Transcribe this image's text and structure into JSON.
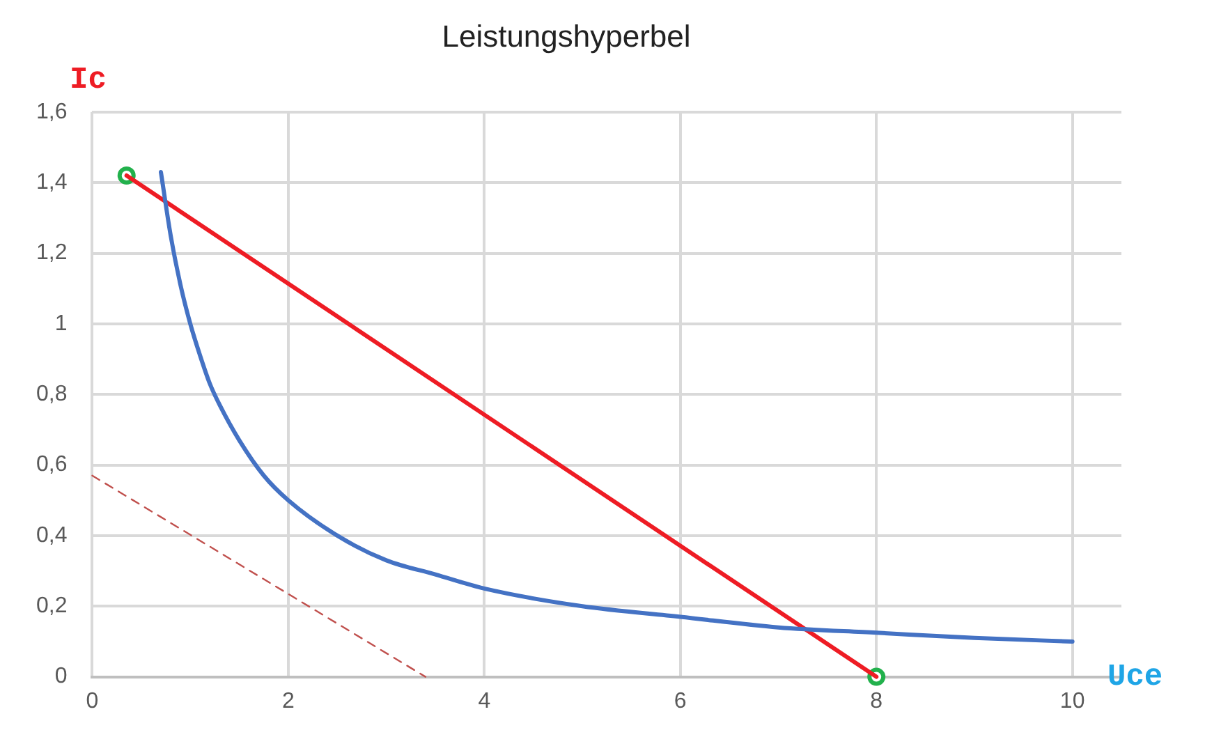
{
  "chart_data": {
    "type": "line",
    "title": "Leistungshyperbel",
    "xlabel": "Uce",
    "ylabel": "Ic",
    "xlim": [
      0,
      10.5
    ],
    "ylim": [
      0,
      1.6
    ],
    "xticks": [
      0,
      2,
      4,
      6,
      8,
      10
    ],
    "yticks": [
      0,
      {
        "value": 0.2,
        "label": "0,2"
      },
      {
        "value": 0.4,
        "label": "0,4"
      },
      {
        "value": 0.6,
        "label": "0,6"
      },
      {
        "value": 0.8,
        "label": "0,8"
      },
      1,
      {
        "value": 1.2,
        "label": "1,2"
      },
      {
        "value": 1.4,
        "label": "1,4"
      },
      {
        "value": 1.6,
        "label": "1,6"
      }
    ],
    "grid": true,
    "series": [
      {
        "type": "line",
        "color": "#4472c4",
        "marker": "none",
        "x": [
          0.7,
          0.8,
          0.9,
          1,
          1.1,
          1.2,
          1.3,
          1.5,
          1.75,
          2,
          2.5,
          3,
          3.5,
          4,
          5,
          6,
          7,
          8,
          9,
          10
        ],
        "values": [
          1.43,
          1.25,
          1.11,
          1.0,
          0.91,
          0.83,
          0.77,
          0.67,
          0.57,
          0.5,
          0.4,
          0.33,
          0.29,
          0.25,
          0.2,
          0.17,
          0.14,
          0.125,
          0.11,
          0.1
        ]
      },
      {
        "type": "line",
        "color": "#c0504d",
        "marker": "none",
        "line_style": "dashed",
        "x": [
          0,
          3.4
        ],
        "values": [
          0.57,
          0
        ]
      },
      {
        "type": "line",
        "color": "#ee1c24",
        "marker": "none",
        "x": [
          0.35,
          8
        ],
        "values": [
          1.42,
          0
        ]
      },
      {
        "type": "scatter",
        "color": "#22b14c",
        "marker": "circle",
        "x": [
          0.35,
          8
        ],
        "values": [
          1.42,
          0
        ]
      }
    ]
  }
}
